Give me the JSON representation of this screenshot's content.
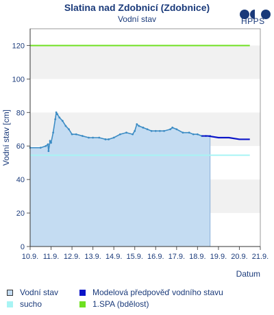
{
  "header": {
    "title": "Slatina nad Zdobnicí (Zdobnice)",
    "subtitle": "Vodní stav",
    "logo_text": "HPPS"
  },
  "colors": {
    "observed_fill": "#c4dcf2",
    "observed_line": "#3c8cc4",
    "forecast_line": "#0a14c8",
    "drought_line": "#a8f4f4",
    "spa_line": "#6ee020",
    "band": "#f1f1f1",
    "text": "#1a3a7a"
  },
  "legend": [
    {
      "label": "Vodní stav",
      "color": "#c4dcf2",
      "style": "box",
      "icon": "observed-swatch"
    },
    {
      "label": "Modelová předpověď vodního stavu",
      "color": "#0a14c8",
      "style": "solid",
      "icon": "forecast-swatch"
    },
    {
      "label": "sucho",
      "color": "#a8f4f4",
      "style": "solid",
      "icon": "drought-swatch"
    },
    {
      "label": "1.SPA (bdělost)",
      "color": "#6ee020",
      "style": "solid",
      "icon": "spa-swatch"
    }
  ],
  "chart_data": {
    "type": "area",
    "xlabel": "Datum",
    "ylabel": "Vodní stav [cm]",
    "xlim": [
      0,
      11
    ],
    "ylim": [
      0,
      130
    ],
    "x_ticks": [
      {
        "v": 0,
        "label": "10.9."
      },
      {
        "v": 1,
        "label": "11.9."
      },
      {
        "v": 2,
        "label": "12.9."
      },
      {
        "v": 3,
        "label": "13.9."
      },
      {
        "v": 4,
        "label": "14.9."
      },
      {
        "v": 5,
        "label": "15.9."
      },
      {
        "v": 6,
        "label": "16.9."
      },
      {
        "v": 7,
        "label": "17.9."
      },
      {
        "v": 8,
        "label": "18.9."
      },
      {
        "v": 9,
        "label": "19.9."
      },
      {
        "v": 10,
        "label": "20.9."
      },
      {
        "v": 11,
        "label": "21.9."
      }
    ],
    "y_ticks": [
      0,
      20,
      40,
      60,
      80,
      100,
      120
    ],
    "bands": [
      [
        20,
        40
      ],
      [
        60,
        80
      ],
      [
        100,
        120
      ]
    ],
    "grid": true,
    "series": [
      {
        "name": "Vodní stav",
        "kind": "area",
        "x": [
          0,
          0.5,
          0.75,
          0.85,
          0.88,
          0.95,
          1.0,
          1.1,
          1.2,
          1.25,
          1.3,
          1.4,
          1.55,
          1.7,
          1.85,
          2.0,
          2.2,
          2.5,
          2.8,
          3.0,
          3.3,
          3.6,
          3.75,
          4.0,
          4.3,
          4.6,
          4.9,
          5.0,
          5.1,
          5.2,
          5.4,
          5.6,
          5.8,
          6.0,
          6.2,
          6.4,
          6.7,
          6.8,
          7.0,
          7.3,
          7.6,
          7.8,
          8.0,
          8.2,
          8.4,
          8.6
        ],
        "y": [
          59,
          59,
          60,
          61,
          57,
          63,
          62,
          68,
          76,
          80,
          79,
          77,
          75,
          72,
          70,
          67,
          67,
          66,
          65,
          65,
          65,
          64,
          64,
          65,
          67,
          68,
          67,
          69,
          73,
          72,
          71,
          70,
          69,
          69,
          69,
          69,
          70,
          71,
          70,
          68,
          68,
          67,
          67,
          66,
          66,
          66
        ]
      },
      {
        "name": "Modelová předpověď vodního stavu",
        "kind": "line",
        "x": [
          8.2,
          8.5,
          9.0,
          9.5,
          10.0,
          10.5
        ],
        "y": [
          66,
          66,
          65,
          65,
          64,
          64
        ]
      },
      {
        "name": "sucho",
        "kind": "hline",
        "x": [
          0,
          10.5
        ],
        "y": [
          54.5,
          54.5
        ]
      },
      {
        "name": "1.SPA (bdělost)",
        "kind": "hline",
        "x": [
          0,
          10.5
        ],
        "y": [
          120,
          120
        ]
      }
    ]
  }
}
